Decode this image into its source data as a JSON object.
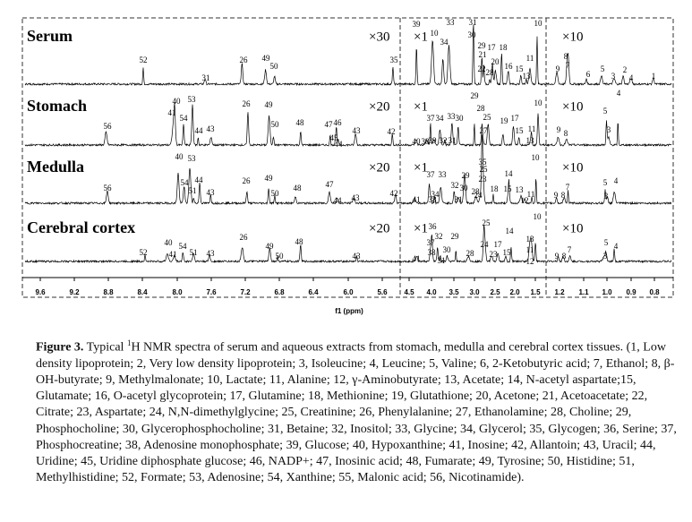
{
  "figure": {
    "panels": [
      {
        "name": "Serum",
        "scales": [
          "×30",
          "×1",
          "×10"
        ],
        "peaks": [
          "52",
          "31",
          "26",
          "49",
          "50",
          "35",
          "39",
          "10",
          "33",
          "34",
          "31",
          "30",
          "29",
          "17",
          "18",
          "21",
          "20",
          "22",
          "28",
          "16",
          "15",
          "11",
          "13",
          "10",
          "9",
          "8",
          "7",
          "6",
          "5",
          "3",
          "2",
          "4",
          "1"
        ]
      },
      {
        "name": "Stomach",
        "scales": [
          "×20",
          "×1",
          "×10"
        ],
        "peaks": [
          "56",
          "40",
          "53",
          "41",
          "54",
          "44",
          "43",
          "26",
          "49",
          "50",
          "48",
          "47",
          "46",
          "45",
          "44",
          "43",
          "42",
          "37",
          "34",
          "33",
          "30",
          "40",
          "38",
          "39",
          "32",
          "31",
          "28",
          "29",
          "25",
          "27",
          "19",
          "17",
          "15",
          "11",
          "13",
          "10",
          "9",
          "8",
          "5",
          "4",
          "3"
        ]
      },
      {
        "name": "Medulla",
        "scales": [
          "×20",
          "×1",
          "×10"
        ],
        "peaks": [
          "40",
          "53",
          "54",
          "51",
          "44",
          "43",
          "26",
          "49",
          "50",
          "48",
          "47",
          "44",
          "43",
          "42",
          "56",
          "41",
          "37",
          "33",
          "32",
          "29",
          "34",
          "38",
          "30",
          "28",
          "31",
          "35",
          "23",
          "24",
          "25",
          "18",
          "14",
          "15",
          "13",
          "11",
          "12",
          "10",
          "9",
          "8",
          "7",
          "5",
          "3",
          "4"
        ]
      },
      {
        "name": "Cerebral cortex",
        "scales": [
          "×20",
          "×1",
          "×10"
        ],
        "peaks": [
          "52",
          "40",
          "41",
          "54",
          "51",
          "43",
          "26",
          "49",
          "50",
          "48",
          "43",
          "41",
          "36",
          "37",
          "38",
          "32",
          "30",
          "29",
          "31",
          "28",
          "25",
          "24",
          "17",
          "14",
          "23",
          "15",
          "13",
          "11",
          "12",
          "10",
          "9",
          "8",
          "7",
          "5",
          "3",
          "4"
        ]
      }
    ],
    "axis": {
      "ticks": [
        "9.6",
        "9.2",
        "8.8",
        "8.4",
        "8.0",
        "7.6",
        "7.2",
        "6.8",
        "6.4",
        "6.0",
        "5.6",
        "4.5",
        "4.0",
        "3.5",
        "3.0",
        "2.5",
        "2.0",
        "1.5",
        "1.2",
        "1.1",
        "1.0",
        "0.9",
        "0.8"
      ],
      "label": "f1 (ppm)"
    },
    "caption": {
      "label": "Figure 3.",
      "text_before": "Typical ",
      "sup": "1",
      "text_after": "H NMR spectra of serum and aqueous extracts from stomach, medulla and cerebral cortex tissues. (1, Low density lipoprotein; 2, Very low density lipoprotein; 3, Isoleucine; 4, Leucine; 5, Valine; 6, 2-Ketobutyric acid; 7, Ethanol; 8, β-OH-butyrate; 9, Methylmalonate; 10, Lactate; 11, Alanine; 12, γ-Aminobutyrate; 13, Acetate; 14, N-acetyl aspartate;15, Glutamate; 16, O-acetyl glycoprotein; 17, Glutamine; 18, Methionine; 19, Glutathione; 20, Acetone; 21, Acetoacetate; 22, Citrate; 23, Aspartate; 24, N,N-dimethylglycine; 25, Creatinine; 26, Phenylalanine; 27, Ethanolamine; 28, Choline; 29, Phosphocholine; 30, Glycerophosphocholine; 31, Betaine; 32, Inositol; 33, Glycine; 34, Glycerol; 35, Glycogen; 36, Serine; 37, Phosphocreatine; 38, Adenosine monophosphate; 39, Glucose; 40, Hypoxanthine; 41, Inosine; 42, Allantoin; 43, Uracil; 44, Uridine; 45, Uridine diphosphate glucose; 46, NADP+; 47, Inosinic acid; 48, Fumarate; 49, Tyrosine; 50, Histidine; 51, Methylhistidine; 52, Formate; 53, Adenosine; 54, Xanthine; 55, Malonic acid; 56, Nicotinamide)."
    }
  }
}
